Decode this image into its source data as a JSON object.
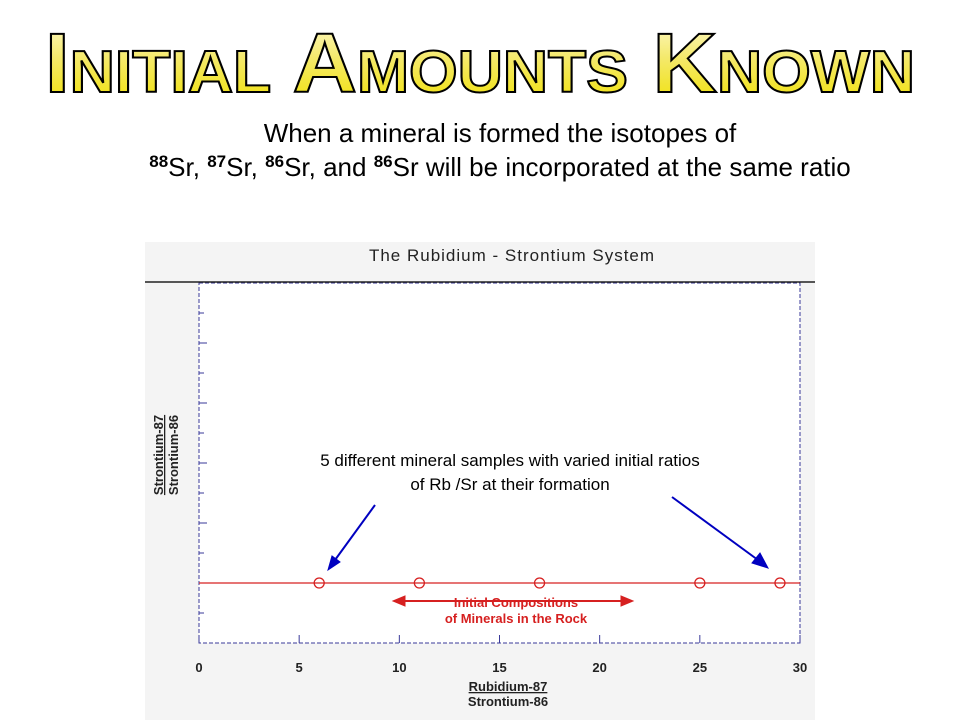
{
  "title": "Initial Amounts Known",
  "subtitle": {
    "lead": "When a mineral is formed the isotopes of",
    "isotopes": [
      {
        "mass": "88",
        "text": "Sr,"
      },
      {
        "mass": "87",
        "text": "Sr,"
      },
      {
        "mass": "86",
        "text": "Sr, and"
      },
      {
        "mass": "86",
        "text": "Sr will be incorporated at the same ratio"
      }
    ]
  },
  "chart_data": {
    "type": "scatter",
    "title": "The Rubidium - Strontium System",
    "x_label": [
      "Rubidium-87",
      "Strontium-86"
    ],
    "y_label": [
      "Strontium-87",
      "Strontium-86"
    ],
    "x": [
      6,
      11,
      17,
      25,
      29
    ],
    "color": "#d62020",
    "xlim": [
      0,
      30
    ],
    "xticks": [
      0,
      5,
      10,
      15,
      20,
      25,
      30
    ],
    "annotations": {
      "samples": [
        "5 different mineral samples with varied initial ratios",
        "of Rb /Sr at their formation"
      ],
      "compositions": [
        "Initial Compositions",
        "of Minerals in the Rock"
      ]
    }
  }
}
